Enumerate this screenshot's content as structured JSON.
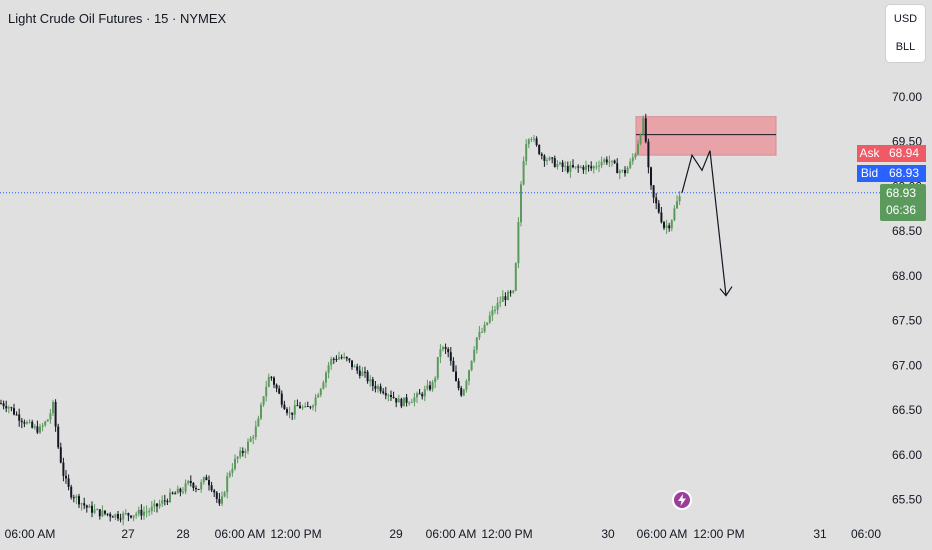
{
  "header": {
    "title": "Light Crude Oil Futures · 15 · NYMEX"
  },
  "currency_box": {
    "currency": "USD",
    "unit": "BLL"
  },
  "quote": {
    "ask_label": "Ask",
    "ask_value": "68.94",
    "bid_label": "Bid",
    "bid_value": "68.93",
    "last_price": "68.93",
    "countdown": "06:36"
  },
  "colors": {
    "background": "#e0e0e0",
    "up_candle": "#5b9a5c",
    "down_candle": "#131722",
    "ask": "#f05a64",
    "bid": "#2962ff",
    "last": "#5b9a5c",
    "zone_fill": "#e8a3a9",
    "zone_border": "#d98a91",
    "price_line": "#2962ff",
    "event_icon": "#9b3e9b"
  },
  "icons": {
    "event": "lightning-icon"
  },
  "chart_data": {
    "type": "candlestick",
    "instrument": "Light Crude Oil Futures",
    "interval": "15",
    "exchange": "NYMEX",
    "ylim": [
      65.35,
      70.25
    ],
    "y_ticks": [
      "70.00",
      "69.50",
      "69.00",
      "68.50",
      "68.00",
      "67.50",
      "67.00",
      "66.50",
      "66.00",
      "65.50"
    ],
    "x_ticks": [
      "06:00 AM",
      "27",
      "28",
      "06:00 AM",
      "12:00 PM",
      "29",
      "06:00 AM",
      "12:00 PM",
      "30",
      "06:00 AM",
      "12:00 PM",
      "31",
      "06:00"
    ],
    "price_path": [
      [
        0,
        66.58
      ],
      [
        8,
        66.55
      ],
      [
        16,
        66.45
      ],
      [
        24,
        66.38
      ],
      [
        32,
        66.3
      ],
      [
        40,
        66.28
      ],
      [
        48,
        66.4
      ],
      [
        53,
        66.55
      ],
      [
        58,
        66.1
      ],
      [
        64,
        65.75
      ],
      [
        70,
        65.58
      ],
      [
        78,
        65.5
      ],
      [
        88,
        65.4
      ],
      [
        100,
        65.35
      ],
      [
        120,
        65.32
      ],
      [
        140,
        65.35
      ],
      [
        150,
        65.38
      ],
      [
        160,
        65.45
      ],
      [
        172,
        65.55
      ],
      [
        182,
        65.6
      ],
      [
        190,
        65.7
      ],
      [
        198,
        65.62
      ],
      [
        206,
        65.75
      ],
      [
        214,
        65.6
      ],
      [
        220,
        65.4
      ],
      [
        228,
        65.78
      ],
      [
        236,
        65.95
      ],
      [
        244,
        66.05
      ],
      [
        252,
        66.2
      ],
      [
        258,
        66.35
      ],
      [
        264,
        66.7
      ],
      [
        270,
        66.9
      ],
      [
        276,
        66.75
      ],
      [
        282,
        66.6
      ],
      [
        290,
        66.45
      ],
      [
        298,
        66.55
      ],
      [
        306,
        66.5
      ],
      [
        314,
        66.6
      ],
      [
        322,
        66.8
      ],
      [
        330,
        67.05
      ],
      [
        338,
        67.1
      ],
      [
        348,
        67.05
      ],
      [
        356,
        66.95
      ],
      [
        364,
        66.9
      ],
      [
        372,
        66.78
      ],
      [
        380,
        66.75
      ],
      [
        390,
        66.68
      ],
      [
        400,
        66.58
      ],
      [
        410,
        66.62
      ],
      [
        418,
        66.65
      ],
      [
        426,
        66.72
      ],
      [
        434,
        66.8
      ],
      [
        440,
        67.2
      ],
      [
        448,
        67.15
      ],
      [
        456,
        66.8
      ],
      [
        462,
        66.68
      ],
      [
        470,
        67.0
      ],
      [
        476,
        67.3
      ],
      [
        484,
        67.4
      ],
      [
        490,
        67.55
      ],
      [
        496,
        67.65
      ],
      [
        502,
        67.75
      ],
      [
        508,
        67.78
      ],
      [
        514,
        67.8
      ],
      [
        518,
        68.5
      ],
      [
        522,
        69.2
      ],
      [
        526,
        69.5
      ],
      [
        530,
        69.6
      ],
      [
        536,
        69.45
      ],
      [
        542,
        69.35
      ],
      [
        548,
        69.3
      ],
      [
        556,
        69.25
      ],
      [
        566,
        69.2
      ],
      [
        576,
        69.2
      ],
      [
        584,
        69.22
      ],
      [
        592,
        69.2
      ],
      [
        600,
        69.28
      ],
      [
        608,
        69.3
      ],
      [
        616,
        69.2
      ],
      [
        624,
        69.15
      ],
      [
        630,
        69.25
      ],
      [
        636,
        69.4
      ],
      [
        640,
        69.6
      ],
      [
        644,
        69.75
      ],
      [
        648,
        69.2
      ],
      [
        652,
        68.9
      ],
      [
        658,
        68.75
      ],
      [
        664,
        68.55
      ],
      [
        670,
        68.58
      ],
      [
        676,
        68.8
      ],
      [
        682,
        68.93
      ]
    ],
    "resistance_zone": {
      "x_start": 636,
      "x_end": 776,
      "price_top": 69.78,
      "price_bottom": 69.35,
      "midline": 69.58
    },
    "projection_path": [
      [
        682,
        68.93
      ],
      [
        692,
        69.35
      ],
      [
        702,
        69.18
      ],
      [
        710,
        69.4
      ],
      [
        726,
        67.78
      ]
    ],
    "last_price": 68.93,
    "ask": 68.94,
    "bid": 68.93
  }
}
